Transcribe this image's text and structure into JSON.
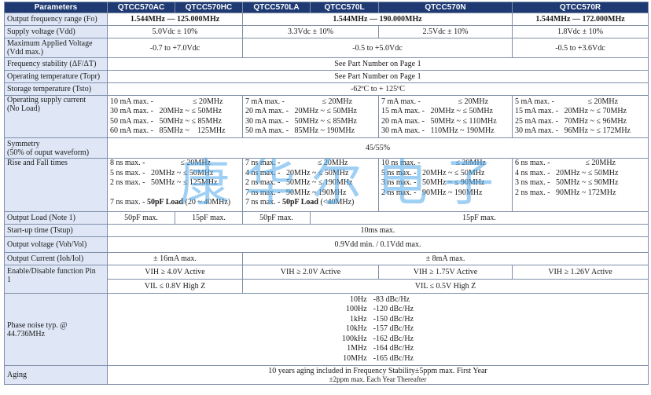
{
  "headers": {
    "parameters": "Parameters",
    "ac": "QTCC570AC",
    "hc": "QTCC570HC",
    "la": "QTCC570LA",
    "l": "QTCC570L",
    "n": "QTCC570N",
    "r": "QTCC570R"
  },
  "rows": {
    "freq": {
      "label": "Output frequency range (Fo)",
      "ac_hc": "1.544MHz — 125.000MHz",
      "la_n": "1.544MHz — 190.000MHz",
      "r": "1.544MHz — 172.000MHz"
    },
    "vdd": {
      "label": "Supply voltage (Vdd)",
      "ac_hc": "5.0Vdc ± 10%",
      "la_l": "3.3Vdc ± 10%",
      "n": "2.5Vdc ± 10%",
      "r": "1.8Vdc ± 10%"
    },
    "max_v": {
      "label1": "Maximum Applied Voltage",
      "label2": "(Vdd max.)",
      "ac_hc": "-0.7 to +7.0Vdc",
      "la_n": "-0.5 to +5.0Vdc",
      "r": "-0.5 to +3.6Vdc"
    },
    "stability": {
      "label": "Frequency stability (ΔF/ΔT)",
      "value": "See Part Number on Page 1"
    },
    "op_temp": {
      "label": "Operating temperature (Topr)",
      "value": "See Part Number on Page 1"
    },
    "st_temp": {
      "label": "Storage temperature (Tsto)",
      "value": "-62ºC to + 125ºC"
    },
    "current": {
      "label1": "Operating supply current",
      "label2": "(No Load)",
      "ac_hc": [
        "10 mA max. -                    ≤ 20MHz",
        "30 mA max. -   20MHz ~ ≤ 50MHz",
        "50 mA max. -   50MHz ~ ≤ 85MHz",
        "60 mA max. -   85MHz ~    125MHz"
      ],
      "la_l": [
        "7 mA max. -                   ≤ 20MHz",
        "20 mA max. -   20MHz ~ ≤ 50MHz",
        "30 mA max. -   50MHz ~ ≤ 85MHz",
        "50 mA max. -   85MHz ~ 190MHz"
      ],
      "n": [
        "7 mA max. -                   ≤ 20MHz",
        "15 mA max. -   20MHz ~ ≤ 50MHz",
        "20 mA max. -   50MHz ~ ≤ 110MHz",
        "30 mA max. -   110MHz ~ 190MHz"
      ],
      "r": [
        "5 mA max. -                 ≤ 20MHz",
        "15 mA max. -   20MHz ~ ≤ 70MHz",
        "25 mA max. -   70MHz ~ ≤ 96MHz",
        "30 mA max. -   96MHz ~ ≤ 172MHz"
      ]
    },
    "symmetry": {
      "label1": "Symmetry",
      "label2": "(50% of ouput waveform)",
      "value": "45/55%"
    },
    "rise_fall": {
      "label": "Rise and Fall times",
      "ac_hc": [
        "8 ns max. -                  ≤ 20MHz",
        "5 ns max. -   20MHz ~ ≤ 50MHz",
        "2 ns max. -   50MHz ~ ≤ 125MHz",
        ""
      ],
      "ac_hc_last_pre": "7 ns max. - ",
      "ac_hc_last_bold": "50pF Load",
      "ac_hc_last_post": " (20 ~ 40MHz)",
      "la_l": [
        "7 ns max. -                   ≤ 20MHz",
        "4 ns max. -   20MHz ~ ≤ 50MHz",
        "2 ns max. -   50MHz ~ ≤ 190MHz",
        "7 ns max. -   90MHz ~ 190MHz"
      ],
      "la_l_last_pre": "7 ns max. - ",
      "la_l_last_bold": "50pF Load",
      "la_l_last_post": " (<40MHz)",
      "n": [
        "10 ns max. -                  ≤ 20MHz",
        "5 ns max. -   20MHz ~ ≤ 50MHz",
        "3 ns max. -   50MHz ~ ≤ 90MHz",
        "2 ns max. -   90MHz ~ 190MHz"
      ],
      "r": [
        "6 ns max. -                  ≤ 20MHz",
        "4 ns max. -   20MHz ~ ≤ 50MHz",
        "3 ns max. -   50MHz ~ ≤ 90MHz",
        "2 ns max. -   90MHz ~ 172MHz"
      ]
    },
    "load": {
      "label": "Output Load (Note 1)",
      "ac": "50pF max.",
      "hc": "15pF max.",
      "la": "50pF max.",
      "l_r": "15pF max."
    },
    "startup": {
      "label": "Start-up time (Tstup)",
      "value": "10ms max."
    },
    "voh_vol": {
      "label": "Output voltage (Voh/Vol)",
      "value": "0.9Vdd min. / 0.1Vdd max."
    },
    "ioh_iol": {
      "label": "Output Current (Ioh/Iol)",
      "ac_hc": "± 16mA max.",
      "la_r": "± 8mA max."
    },
    "enable": {
      "label1": "Enable/Disable function Pin",
      "label2": "1",
      "vih_ac_hc": "VIH ≥ 4.0V Active",
      "vih_la_l": "VIH ≥ 2.0V Active",
      "vih_n": "VIH ≥ 1.75V Active",
      "vih_r": "VIH ≥ 1.26V Active",
      "vil_ac_hc": "VIL ≤ 0.8V High Z",
      "vil_la_r": "VIL ≤ 0.5V High Z"
    },
    "phase_noise": {
      "label1": "Phase noise typ. @",
      "label2": "44.736MHz",
      "offsets": [
        "10Hz",
        "100Hz",
        "1kHz",
        "10kHz",
        "100kHz",
        "1MHz",
        "10MHz"
      ],
      "levels": [
        "-83 dBc/Hz",
        "-120 dBc/Hz",
        "-150 dBc/Hz",
        "-157 dBc/Hz",
        "-162 dBc/Hz",
        "-164 dBc/Hz",
        "-165 dBc/Hz"
      ]
    },
    "aging": {
      "label": "Aging",
      "line1": "10 years aging included in Frequency Stability±5ppm max. First Year",
      "line2": "±2ppm max. Each Year Thereafter"
    }
  },
  "watermark": "康华尔电子",
  "colors": {
    "header_bg": "#1f3a73",
    "param_bg": "#dfe7f6",
    "border": "#7f8fa8",
    "watermark": "#50aaeb"
  }
}
